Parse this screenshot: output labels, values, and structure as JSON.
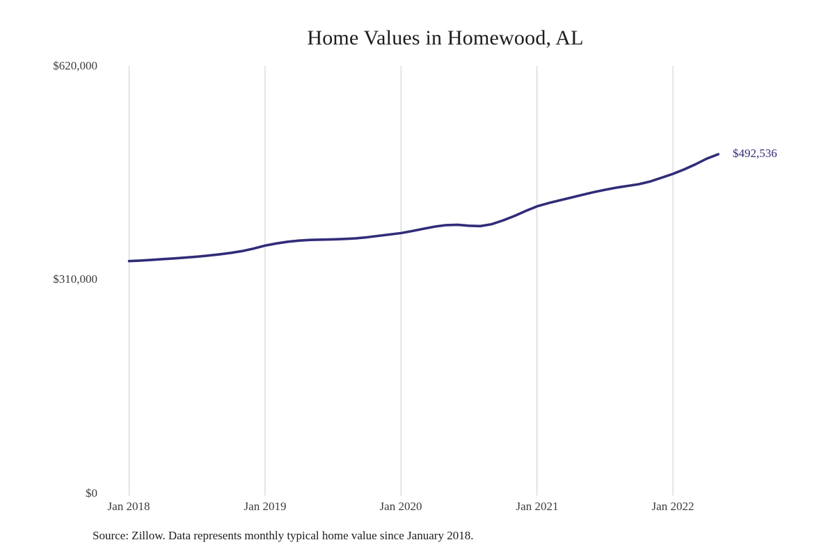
{
  "chart_data": {
    "type": "line",
    "title": "Home Values in Homewood, AL",
    "source_note": "Source: Zillow. Data represents monthly typical home value since January 2018.",
    "series_name": "Monthly typical home value",
    "end_label": "$492,536",
    "end_value": 492536,
    "line_color": "#312c78",
    "gridline_color": "#cbcbcb",
    "axis_text_color": "#3c3c3c",
    "ylim": [
      0,
      620000
    ],
    "grid": "vertical-only",
    "legend": "none",
    "y_ticks": [
      {
        "label": "$620,000",
        "value": 620000
      },
      {
        "label": "$310,000",
        "value": 310000
      },
      {
        "label": "$0",
        "value": 0
      }
    ],
    "x_ticks": [
      {
        "label": "Jan 2018"
      },
      {
        "label": "Jan 2019"
      },
      {
        "label": "Jan 2020"
      },
      {
        "label": "Jan 2021"
      },
      {
        "label": "Jan 2022"
      }
    ],
    "months": [
      "Jan 2018",
      "Feb 2018",
      "Mar 2018",
      "Apr 2018",
      "May 2018",
      "Jun 2018",
      "Jul 2018",
      "Aug 2018",
      "Sep 2018",
      "Oct 2018",
      "Nov 2018",
      "Dec 2018",
      "Jan 2019",
      "Feb 2019",
      "Mar 2019",
      "Apr 2019",
      "May 2019",
      "Jun 2019",
      "Jul 2019",
      "Aug 2019",
      "Sep 2019",
      "Oct 2019",
      "Nov 2019",
      "Dec 2019",
      "Jan 2020",
      "Feb 2020",
      "Mar 2020",
      "Apr 2020",
      "May 2020",
      "Jun 2020",
      "Jul 2020",
      "Aug 2020",
      "Sep 2020",
      "Oct 2020",
      "Nov 2020",
      "Dec 2020",
      "Jan 2021",
      "Feb 2021",
      "Mar 2021",
      "Apr 2021",
      "May 2021",
      "Jun 2021",
      "Jul 2021",
      "Aug 2021",
      "Sep 2021",
      "Oct 2021",
      "Nov 2021",
      "Dec 2021",
      "Jan 2022",
      "Feb 2022",
      "Mar 2022",
      "Apr 2022",
      "May 2022"
    ],
    "values": [
      337500,
      338300,
      339300,
      340400,
      341500,
      342700,
      344000,
      345600,
      347400,
      349500,
      352100,
      355800,
      360000,
      363100,
      365600,
      367300,
      368300,
      368700,
      369100,
      369700,
      370600,
      372100,
      374100,
      376100,
      378100,
      381200,
      384500,
      387600,
      389700,
      390200,
      388800,
      388300,
      391100,
      396500,
      403000,
      410200,
      417000,
      421600,
      425600,
      429600,
      433600,
      437500,
      441000,
      444100,
      446600,
      449100,
      453100,
      458500,
      464000,
      470600,
      478100,
      486200,
      492536
    ]
  }
}
